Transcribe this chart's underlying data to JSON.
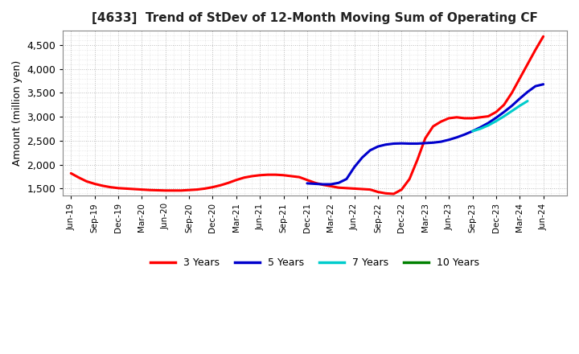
{
  "title": "[4633]  Trend of StDev of 12-Month Moving Sum of Operating CF",
  "ylabel": "Amount (million yen)",
  "background_color": "#ffffff",
  "plot_background": "#ffffff",
  "grid_color": "#aaaaaa",
  "ylim": [
    1350,
    4800
  ],
  "yticks": [
    1500,
    2000,
    2500,
    3000,
    3500,
    4000,
    4500
  ],
  "series": {
    "3 Years": {
      "color": "#ff0000",
      "x": [
        0,
        1,
        2,
        3,
        4,
        5,
        6,
        7,
        8,
        9,
        10,
        11,
        12,
        13,
        14,
        15,
        16,
        17,
        18,
        19,
        20,
        21,
        22,
        23,
        24,
        25,
        26,
        27,
        28,
        29,
        30,
        31,
        32,
        33,
        34,
        35,
        36,
        37,
        38,
        39,
        40,
        41,
        42,
        43,
        44,
        45,
        46,
        47,
        48,
        49,
        50,
        51,
        52,
        53,
        54,
        55,
        56,
        57,
        58,
        59,
        60
      ],
      "y": [
        1820,
        1730,
        1650,
        1600,
        1560,
        1530,
        1510,
        1500,
        1490,
        1480,
        1470,
        1465,
        1460,
        1460,
        1460,
        1470,
        1480,
        1500,
        1530,
        1570,
        1620,
        1680,
        1730,
        1760,
        1780,
        1790,
        1790,
        1780,
        1760,
        1740,
        1680,
        1620,
        1580,
        1550,
        1520,
        1510,
        1500,
        1490,
        1480,
        1430,
        1400,
        1390,
        1480,
        1700,
        2100,
        2550,
        2800,
        2900,
        2970,
        2990,
        2970,
        2970,
        2990,
        3010,
        3100,
        3250,
        3500,
        3800,
        4100,
        4400,
        4680
      ]
    },
    "5 Years": {
      "color": "#0000cc",
      "x": [
        30,
        31,
        32,
        33,
        34,
        35,
        36,
        37,
        38,
        39,
        40,
        41,
        42,
        43,
        44,
        45,
        46,
        47,
        48,
        49,
        50,
        51,
        52,
        53,
        54,
        55,
        56,
        57,
        58,
        59,
        60
      ],
      "y": [
        1610,
        1600,
        1590,
        1590,
        1620,
        1700,
        1950,
        2150,
        2300,
        2380,
        2420,
        2440,
        2445,
        2440,
        2440,
        2450,
        2460,
        2480,
        2520,
        2570,
        2630,
        2700,
        2780,
        2870,
        2980,
        3100,
        3230,
        3380,
        3520,
        3640,
        3680
      ]
    },
    "7 Years": {
      "color": "#00cccc",
      "x": [
        51,
        52,
        53,
        54,
        55,
        56,
        57,
        58,
        59,
        60
      ],
      "y": [
        2700,
        2750,
        2820,
        2910,
        3010,
        3120,
        3230,
        3330,
        null,
        null
      ]
    },
    "10 Years": {
      "color": "#008000",
      "x": [],
      "y": []
    }
  },
  "xtick_labels": [
    "Jun-19",
    "Sep-19",
    "Dec-19",
    "Mar-20",
    "Jun-20",
    "Sep-20",
    "Dec-20",
    "Mar-21",
    "Jun-21",
    "Sep-21",
    "Dec-21",
    "Mar-22",
    "Jun-22",
    "Sep-22",
    "Dec-22",
    "Mar-23",
    "Jun-23",
    "Sep-23",
    "Dec-23",
    "Mar-24",
    "Jun-24"
  ],
  "legend_entries": [
    "3 Years",
    "5 Years",
    "7 Years",
    "10 Years"
  ],
  "legend_colors": [
    "#ff0000",
    "#0000cc",
    "#00cccc",
    "#008000"
  ]
}
